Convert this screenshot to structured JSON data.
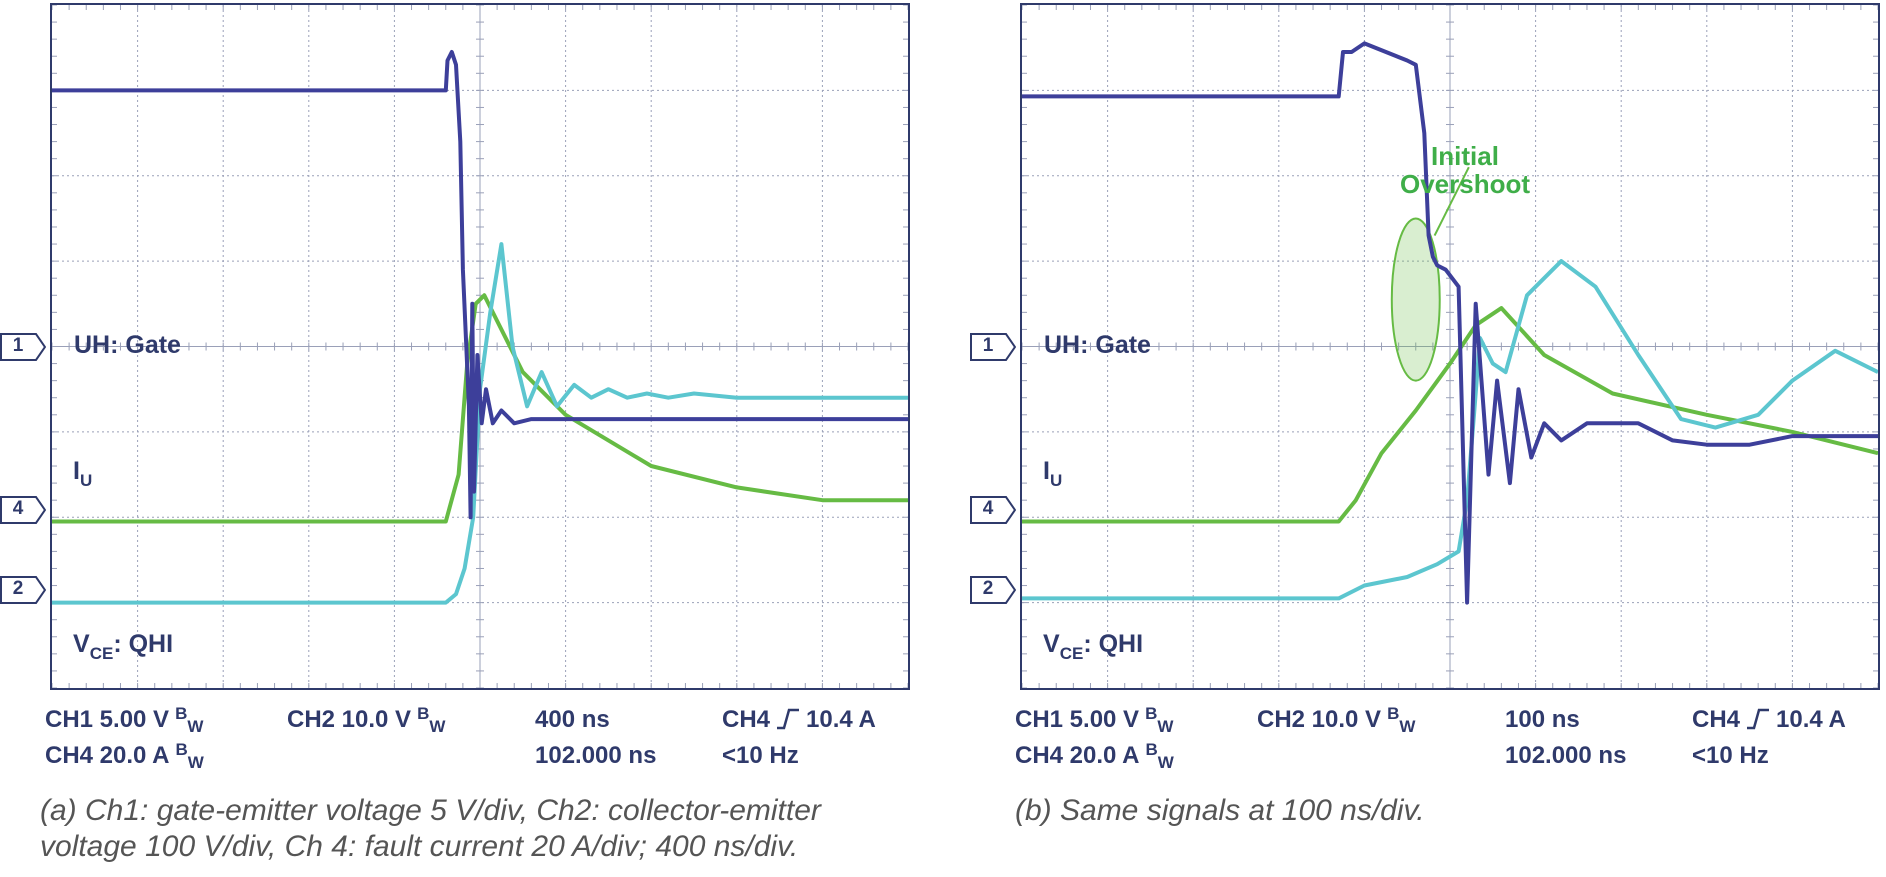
{
  "chart_data": [
    {
      "type": "line",
      "time_per_div": "400 ns",
      "grid": "on",
      "divisions": {
        "x": 10,
        "y": 8
      },
      "x_unit": "divisions",
      "y_unit": "divisions",
      "xlim": [
        0,
        10
      ],
      "ylim": [
        0,
        8
      ],
      "series": [
        {
          "name": "UH: Gate",
          "channel": "1",
          "color": "#3d3f9a",
          "x": [
            0,
            4.6,
            4.62,
            4.67,
            4.72,
            4.77,
            4.8,
            4.84,
            4.87,
            4.89,
            4.91,
            4.93,
            4.97,
            5.02,
            5.07,
            5.15,
            5.25,
            5.4,
            5.6,
            6.0,
            7.0,
            8.0,
            10.0
          ],
          "y": [
            7.0,
            7.0,
            7.35,
            7.45,
            7.3,
            6.4,
            4.9,
            4.0,
            3.3,
            2.0,
            4.5,
            2.3,
            3.9,
            3.1,
            3.5,
            3.1,
            3.25,
            3.1,
            3.15,
            3.15,
            3.15,
            3.15,
            3.15
          ]
        },
        {
          "name": "V_CE: QHI",
          "channel": "2",
          "color": "#5cc6cf",
          "x": [
            0,
            4.6,
            4.72,
            4.82,
            4.92,
            5.0,
            5.12,
            5.25,
            5.38,
            5.55,
            5.72,
            5.9,
            6.1,
            6.3,
            6.5,
            6.72,
            6.95,
            7.2,
            7.5,
            8.0,
            9.0,
            10.0
          ],
          "y": [
            1.0,
            1.0,
            1.1,
            1.4,
            2.0,
            3.5,
            4.4,
            5.2,
            4.0,
            3.3,
            3.7,
            3.3,
            3.55,
            3.4,
            3.5,
            3.4,
            3.45,
            3.4,
            3.45,
            3.4,
            3.4,
            3.4
          ]
        },
        {
          "name": "I_U",
          "channel": "4",
          "color": "#66bb44",
          "x": [
            0,
            4.6,
            4.75,
            4.85,
            4.95,
            5.05,
            5.2,
            5.5,
            6.0,
            7.0,
            8.0,
            9.0,
            10.0
          ],
          "y": [
            1.95,
            1.95,
            2.5,
            3.8,
            4.5,
            4.6,
            4.3,
            3.7,
            3.2,
            2.6,
            2.35,
            2.2,
            2.2
          ]
        }
      ],
      "channel_labels": [
        "UH: Gate",
        "I",
        "U",
        "V",
        "CE",
        ": QHI"
      ],
      "readout": {
        "ch1": "CH1 5.00 V",
        "ch2": "CH2  10.0 V",
        "ch4": "CH4 20.0 A",
        "bw_b": "B",
        "bw_w": "W",
        "timebase": "400 ns",
        "delay": "102.000 ns",
        "trigger_ch": "CH4",
        "trigger_level": "10.4 A",
        "trigger_freq": "<10 Hz"
      },
      "caption_line1": "(a) Ch1: gate-emitter voltage 5 V/div, Ch2: collector-emitter",
      "caption_line2": "voltage 100 V/div, Ch 4: fault current 20 A/div; 400 ns/div."
    },
    {
      "type": "line",
      "time_per_div": "100 ns",
      "grid": "on",
      "divisions": {
        "x": 10,
        "y": 8
      },
      "x_unit": "divisions",
      "y_unit": "divisions",
      "xlim": [
        0,
        10
      ],
      "ylim": [
        0,
        8
      ],
      "series": [
        {
          "name": "UH: Gate",
          "channel": "1",
          "color": "#3d3f9a",
          "x": [
            0,
            3.7,
            3.75,
            3.85,
            4.0,
            4.5,
            4.6,
            4.7,
            4.75,
            4.8,
            4.85,
            4.95,
            5.1,
            5.2,
            5.3,
            5.45,
            5.55,
            5.7,
            5.8,
            5.95,
            6.1,
            6.3,
            6.6,
            7.2,
            7.6,
            8.0,
            8.5,
            9.0,
            10.0
          ],
          "y": [
            6.93,
            6.93,
            7.45,
            7.45,
            7.55,
            7.35,
            7.3,
            6.5,
            5.3,
            5.05,
            4.95,
            4.9,
            4.7,
            1.0,
            4.5,
            2.5,
            3.6,
            2.4,
            3.5,
            2.7,
            3.1,
            2.9,
            3.1,
            3.1,
            2.9,
            2.85,
            2.85,
            2.95,
            2.95
          ]
        },
        {
          "name": "V_CE: QHI",
          "channel": "2",
          "color": "#5cc6cf",
          "x": [
            0,
            3.7,
            4.0,
            4.5,
            4.85,
            5.1,
            5.2,
            5.28,
            5.35,
            5.5,
            5.65,
            5.9,
            6.3,
            6.7,
            7.2,
            7.7,
            8.1,
            8.6,
            9.0,
            9.5,
            10.0
          ],
          "y": [
            1.05,
            1.05,
            1.2,
            1.3,
            1.45,
            1.6,
            2.2,
            3.2,
            4.1,
            3.8,
            3.7,
            4.6,
            5.0,
            4.7,
            3.9,
            3.15,
            3.05,
            3.2,
            3.6,
            3.95,
            3.7
          ]
        },
        {
          "name": "I_U",
          "channel": "4",
          "color": "#66bb44",
          "x": [
            0,
            3.7,
            3.9,
            4.2,
            4.6,
            5.0,
            5.3,
            5.6,
            6.1,
            6.9,
            8.0,
            9.0,
            10.0
          ],
          "y": [
            1.95,
            1.95,
            2.2,
            2.75,
            3.25,
            3.8,
            4.25,
            4.45,
            3.9,
            3.45,
            3.2,
            3.0,
            2.75
          ]
        }
      ],
      "annotation_line1": "Initial",
      "annotation_line2": "Overshoot",
      "channel_labels": [
        "UH: Gate",
        "I",
        "U",
        "V",
        "CE",
        ": QHI"
      ],
      "readout": {
        "ch1": "CH1 5.00 V",
        "ch2": "CH2  10.0 V",
        "ch4": "CH4 20.0 A",
        "bw_b": "B",
        "bw_w": "W",
        "timebase": "100 ns",
        "delay": "102.000 ns",
        "trigger_ch": "CH4",
        "trigger_level": "10.4 A",
        "trigger_freq": "<10 Hz"
      },
      "caption_line1": "(b) Same signals at 100 ns/div."
    }
  ]
}
